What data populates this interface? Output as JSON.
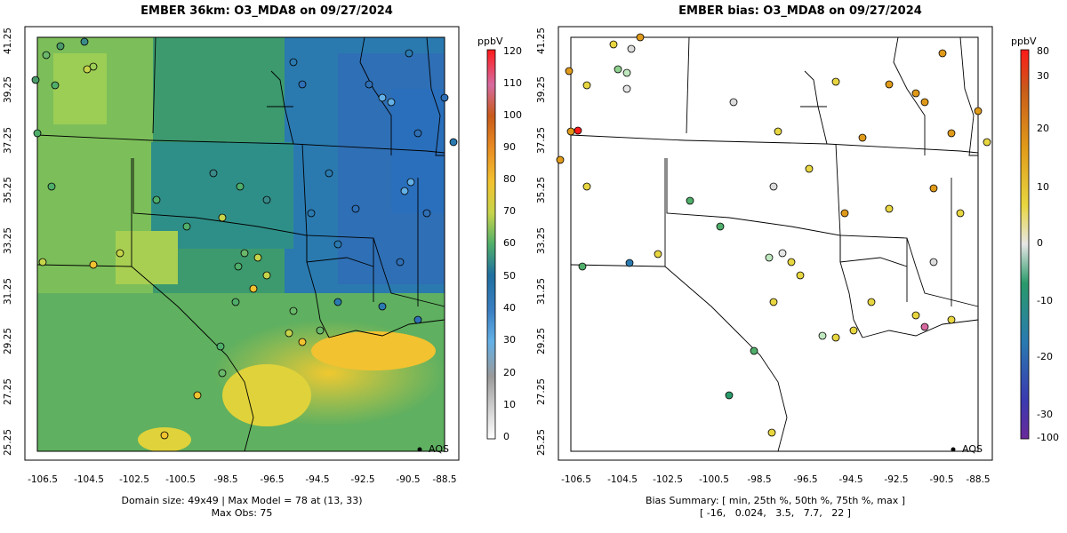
{
  "left": {
    "title": "EMBER 36km: O3_MDA8 on 09/27/2024",
    "footer_line1": "Domain size: 49x49 | Max Model = 78 at (13, 33)",
    "footer_line2": "Max Obs: 75",
    "colorbar_unit": "ppbV",
    "colorbar_ticks": [
      "120",
      "110",
      "100",
      "90",
      "80",
      "70",
      "60",
      "50",
      "40",
      "30",
      "20",
      "10",
      "0"
    ],
    "legend_label": "AQS"
  },
  "right": {
    "title": "EMBER bias: O3_MDA8 on 09/27/2024",
    "footer_line1": "Bias Summary: [ min, 25th %, 50th %, 75th %, max ]",
    "footer_line2": "[ -16,   0.024,   3.5,   7.7,   22 ]",
    "colorbar_unit": "ppbV",
    "colorbar_ticks": [
      "80",
      "30",
      "20",
      "10",
      "0",
      "-10",
      "-20",
      "-30",
      "-100"
    ],
    "legend_label": "AQS"
  },
  "axes": {
    "x_ticks": [
      "-106.5",
      "-104.5",
      "-102.5",
      "-100.5",
      "-98.5",
      "-96.5",
      "-94.5",
      "-92.5",
      "-90.5",
      "-88.5"
    ],
    "y_ticks": [
      "41.25",
      "39.25",
      "37.25",
      "35.25",
      "33.25",
      "31.25",
      "29.25",
      "27.25",
      "25.25"
    ]
  },
  "colors": {
    "model_low": "#2f6fb5",
    "model_mid": "#3c9a6e",
    "model_high": "#e8d640",
    "bias_pos": "#e09a1a",
    "bias_neg": "#2a9a6a"
  }
}
